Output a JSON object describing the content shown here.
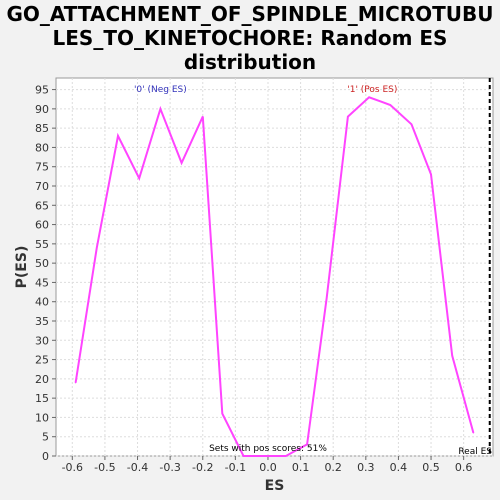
{
  "chart_data": {
    "type": "line",
    "title_lines": [
      "GO_ATTACHMENT_OF_SPINDLE_MICROTUBU",
      "LES_TO_KINETOCHORE: Random ES",
      "distribution"
    ],
    "xlabel": "ES",
    "ylabel": "P(ES)",
    "xlim": [
      -0.65,
      0.69
    ],
    "ylim": [
      0,
      98
    ],
    "xticks": [
      -0.6,
      -0.5,
      -0.4,
      -0.3,
      -0.2,
      -0.1,
      0.0,
      0.1,
      0.2,
      0.3,
      0.4,
      0.5,
      0.6
    ],
    "xtick_labels": [
      "-0.6",
      "-0.5",
      "-0.4",
      "-0.3",
      "-0.2",
      "-0.1",
      "0.0",
      "0.1",
      "0.2",
      "0.3",
      "0.4",
      "0.5",
      "0.6"
    ],
    "yticks": [
      0,
      5,
      10,
      15,
      20,
      25,
      30,
      35,
      40,
      45,
      50,
      55,
      60,
      65,
      70,
      75,
      80,
      85,
      90,
      95
    ],
    "grid": true,
    "series": [
      {
        "color": "#ff44ff",
        "x": [
          -0.59,
          -0.525,
          -0.46,
          -0.395,
          -0.33,
          -0.265,
          -0.2,
          -0.14,
          -0.075,
          -0.01,
          0.055,
          0.12,
          0.18,
          0.245,
          0.31,
          0.375,
          0.44,
          0.5,
          0.565,
          0.63
        ],
        "y": [
          19,
          54,
          83,
          72,
          90,
          76,
          88,
          11,
          0,
          0,
          0,
          3,
          41,
          88,
          93,
          91,
          86,
          73,
          26,
          6
        ]
      }
    ],
    "annotations": {
      "neg_label": "'0' (Neg ES)",
      "pos_label": "'1' (Pos ES)",
      "sets_text": "Sets with pos scores: 51%",
      "real_es_label": "Real ES",
      "real_es_x": 0.68
    },
    "colors": {
      "neg": "#3333bb",
      "pos": "#cc2222",
      "line": "#ff44ff"
    }
  }
}
